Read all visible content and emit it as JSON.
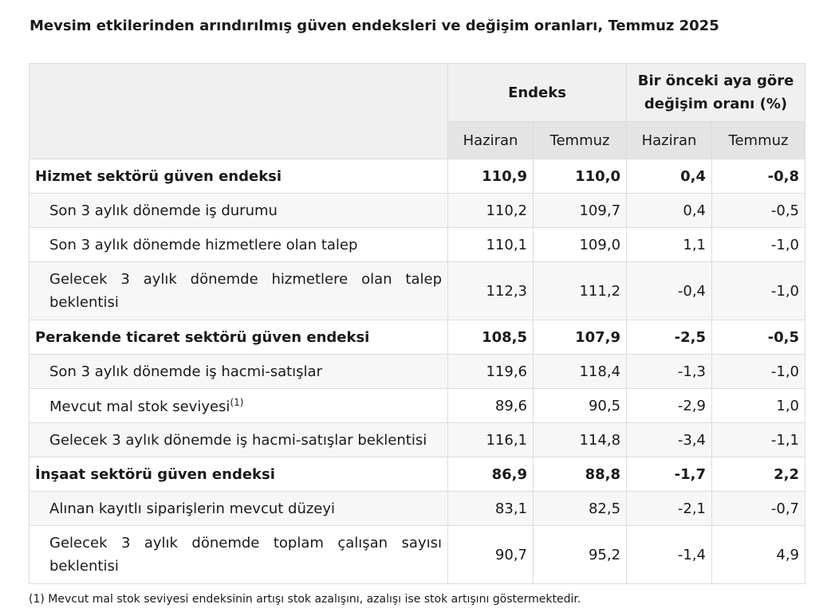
{
  "title": "Mevsim etkilerinden arındırılmış güven endeksleri ve değişim oranları, Temmuz 2025",
  "header": {
    "group1": "Endeks",
    "group2": "Bir önceki aya göre değişim oranı (%)",
    "cols": [
      "Haziran",
      "Temmuz",
      "Haziran",
      "Temmuz"
    ]
  },
  "rows": [
    {
      "label": "Hizmet sektörü güven endeksi",
      "sup": "",
      "values": [
        "110,9",
        "110,0",
        "0,4",
        "-0,8"
      ]
    },
    {
      "label": "Son 3 aylık dönemde iş durumu",
      "sup": "",
      "values": [
        "110,2",
        "109,7",
        "0,4",
        "-0,5"
      ]
    },
    {
      "label": "Son 3 aylık dönemde hizmetlere olan talep",
      "sup": "",
      "values": [
        "110,1",
        "109,0",
        "1,1",
        "-1,0"
      ]
    },
    {
      "label": "Gelecek 3 aylık dönemde hizmetlere olan talep beklentisi",
      "sup": "",
      "values": [
        "112,3",
        "111,2",
        "-0,4",
        "-1,0"
      ]
    },
    {
      "label": "Perakende ticaret sektörü güven endeksi",
      "sup": "",
      "values": [
        "108,5",
        "107,9",
        "-2,5",
        "-0,5"
      ]
    },
    {
      "label": "Son 3 aylık dönemde iş hacmi-satışlar",
      "sup": "",
      "values": [
        "119,6",
        "118,4",
        "-1,3",
        "-1,0"
      ]
    },
    {
      "label": "Mevcut mal stok seviyesi",
      "sup": "(1)",
      "values": [
        "89,6",
        "90,5",
        "-2,9",
        "1,0"
      ]
    },
    {
      "label": "Gelecek 3 aylık dönemde iş hacmi-satışlar beklentisi",
      "sup": "",
      "values": [
        "116,1",
        "114,8",
        "-3,4",
        "-1,1"
      ]
    },
    {
      "label": "İnşaat sektörü güven endeksi",
      "sup": "",
      "values": [
        "86,9",
        "88,8",
        "-1,7",
        "2,2"
      ]
    },
    {
      "label": "Alınan kayıtlı siparişlerin mevcut düzeyi",
      "sup": "",
      "values": [
        "83,1",
        "82,5",
        "-2,1",
        "-0,7"
      ]
    },
    {
      "label": "Gelecek 3 aylık dönemde toplam çalışan sayısı beklentisi",
      "sup": "",
      "values": [
        "90,7",
        "95,2",
        "-1,4",
        "4,9"
      ]
    }
  ],
  "footnote": "(1) Mevcut mal stok seviyesi endeksinin artışı stok azalışını, azalışı ise stok artışını göstermektedir."
}
